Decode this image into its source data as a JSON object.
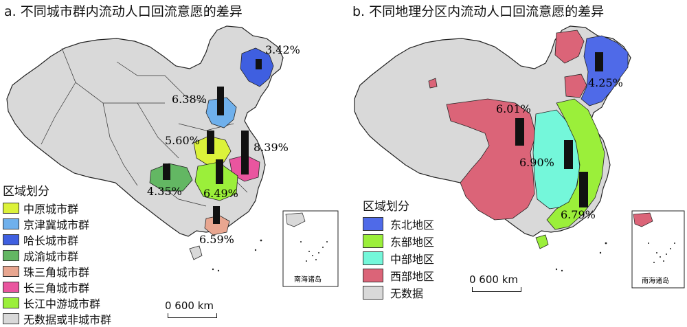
{
  "panel_a": {
    "title": "a. 不同城市群内流动人口回流意愿的差异",
    "legend_heading": "区域划分",
    "legend": [
      {
        "label": "中原城市群",
        "color": "#dcf23a"
      },
      {
        "label": "京津冀城市群",
        "color": "#6fb0ec"
      },
      {
        "label": "哈长城市群",
        "color": "#3f5fe0"
      },
      {
        "label": "成渝城市群",
        "color": "#63b763"
      },
      {
        "label": "珠三角城市群",
        "color": "#e8a690"
      },
      {
        "label": "长三角城市群",
        "color": "#e9559f"
      },
      {
        "label": "长江中游城市群",
        "color": "#9bef3a"
      },
      {
        "label": "无数据或非城市群",
        "color": "#d9d9d9"
      }
    ],
    "values": [
      {
        "label": "3.42%",
        "name": "哈长城市群"
      },
      {
        "label": "6.38%",
        "name": "京津冀城市群"
      },
      {
        "label": "5.60%",
        "name": "中原城市群"
      },
      {
        "label": "8.39%",
        "name": "长三角城市群"
      },
      {
        "label": "4.35%",
        "name": "成渝城市群"
      },
      {
        "label": "6.49%",
        "name": "长江中游城市群"
      },
      {
        "label": "6.59%",
        "name": "珠三角城市群"
      }
    ],
    "scale_label": "0 600 km",
    "inset_label": "南海诸岛"
  },
  "panel_b": {
    "title": "b. 不同地理分区内流动人口回流意愿的差异",
    "legend_heading": "区域划分",
    "legend": [
      {
        "label": "东北地区",
        "color": "#4f6ae8"
      },
      {
        "label": "东部地区",
        "color": "#9bef3a"
      },
      {
        "label": "中部地区",
        "color": "#74f7da"
      },
      {
        "label": "西部地区",
        "color": "#db6478"
      },
      {
        "label": "无数据",
        "color": "#d9d9d9"
      }
    ],
    "values": [
      {
        "label": "4.25%",
        "name": "东北地区"
      },
      {
        "label": "6.01%",
        "name": "西部地区"
      },
      {
        "label": "6.90%",
        "name": "中部地区"
      },
      {
        "label": "6.79%",
        "name": "东部地区"
      }
    ],
    "scale_label": "0 600 km",
    "inset_label": "南海诸岛"
  }
}
